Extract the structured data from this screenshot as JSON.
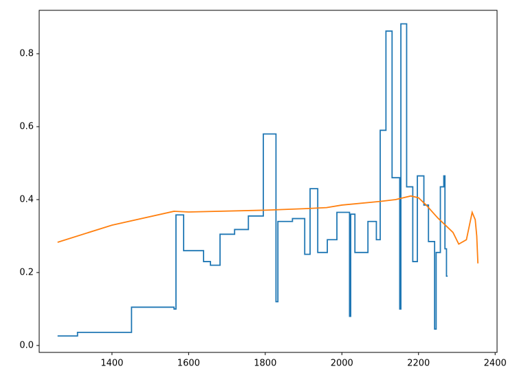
{
  "chart_data": {
    "type": "line",
    "xlim": [
      1210,
      2405
    ],
    "ylim": [
      -0.019,
      0.919
    ],
    "xticks": [
      1400,
      1600,
      1800,
      2000,
      2200,
      2400
    ],
    "yticks": [
      {
        "value": 0,
        "label": "0.0"
      },
      0.2,
      0.4,
      0.6,
      0.8
    ],
    "series": [
      {
        "color": "#1f77b4",
        "drawstyle": "steps-post",
        "x": [
          1258,
          1310,
          1451,
          1562,
          1567,
          1587,
          1639,
          1657,
          1682,
          1720,
          1756,
          1795,
          1828,
          1833,
          1871,
          1903,
          1917,
          1937,
          1962,
          1987,
          2020,
          2023,
          2034,
          2068,
          2090,
          2100,
          2115,
          2131,
          2151,
          2154,
          2169,
          2185,
          2197,
          2214,
          2226,
          2242,
          2246,
          2257,
          2266,
          2269,
          2273,
          2276
        ],
        "values": [
          0.026,
          0.036,
          0.105,
          0.1,
          0.358,
          0.26,
          0.23,
          0.22,
          0.305,
          0.318,
          0.355,
          0.58,
          0.12,
          0.34,
          0.348,
          0.25,
          0.43,
          0.255,
          0.29,
          0.365,
          0.08,
          0.36,
          0.255,
          0.34,
          0.29,
          0.59,
          0.862,
          0.46,
          0.1,
          0.882,
          0.435,
          0.23,
          0.465,
          0.385,
          0.285,
          0.045,
          0.255,
          0.435,
          0.465,
          0.265,
          0.19,
          0.19
        ]
      },
      {
        "color": "#ff7f0e",
        "drawstyle": "default",
        "x": [
          1258,
          1400,
          1562,
          1600,
          1800,
          1900,
          1960,
          2000,
          2100,
          2140,
          2180,
          2200,
          2220,
          2250,
          2270,
          2290,
          2305,
          2325,
          2333,
          2340,
          2348,
          2352,
          2355
        ],
        "values": [
          0.283,
          0.33,
          0.368,
          0.366,
          0.371,
          0.375,
          0.378,
          0.385,
          0.395,
          0.4,
          0.41,
          0.405,
          0.385,
          0.35,
          0.33,
          0.31,
          0.278,
          0.29,
          0.33,
          0.365,
          0.345,
          0.3,
          0.225
        ]
      }
    ]
  }
}
